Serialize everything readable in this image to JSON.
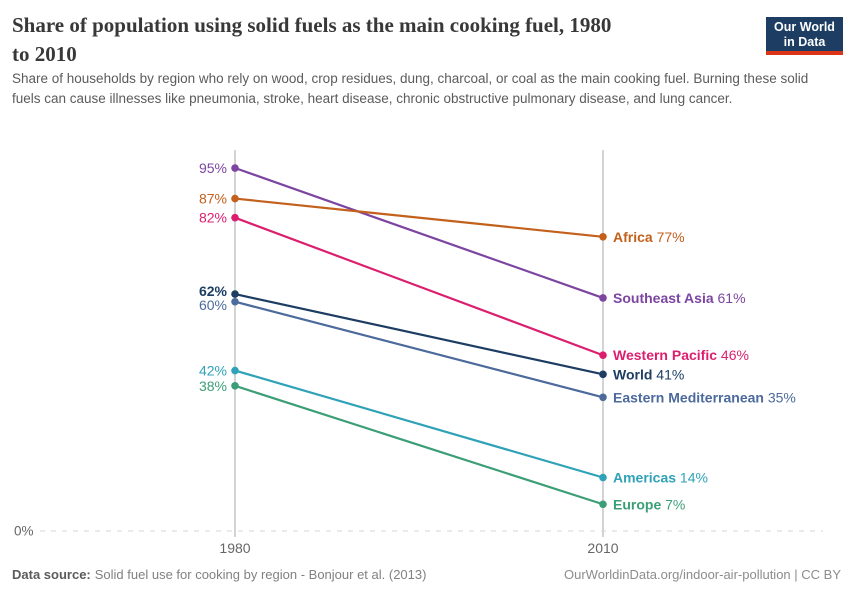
{
  "header": {
    "title_lines": [
      "Share of population using solid fuels as the main cooking fuel, 1980",
      "to 2010"
    ],
    "subtitle": "Share of households by region who rely on wood, crop residues, dung, charcoal, or coal as the main cooking fuel. Burning these solid fuels can cause illnesses like pneumonia, stroke, heart disease, chronic obstructive pulmonary disease, and lung cancer.",
    "logo": {
      "line1": "Our World",
      "line2": "in Data",
      "bg_color": "#1D3D63",
      "accent_color": "#DC3418"
    }
  },
  "chart_data": {
    "type": "line",
    "variant": "slope",
    "x": [
      1980,
      2010
    ],
    "x_tick_labels": [
      "1980",
      "2010"
    ],
    "unit": "%",
    "y_axis": {
      "min": 0,
      "max": 100,
      "baseline_label": "0%"
    },
    "legend_position": "inline-right-labels",
    "grid": "baseline-dashed-only",
    "series": [
      {
        "name": "Southeast Asia",
        "values": [
          95,
          61
        ],
        "color": "#7C45A1",
        "bold": false
      },
      {
        "name": "Africa",
        "values": [
          87,
          77
        ],
        "color": "#C2601C",
        "bold": false
      },
      {
        "name": "Western Pacific",
        "values": [
          82,
          46
        ],
        "color": "#DB1F6E",
        "bold": false
      },
      {
        "name": "World",
        "values": [
          62,
          41
        ],
        "color": "#1D3D63",
        "bold": true
      },
      {
        "name": "Eastern Mediterranean",
        "values": [
          60,
          35
        ],
        "color": "#4C6A9C",
        "bold": false
      },
      {
        "name": "Americas",
        "values": [
          42,
          14
        ],
        "color": "#2FA2B8",
        "bold": false
      },
      {
        "name": "Europe",
        "values": [
          38,
          7
        ],
        "color": "#3C9E77",
        "bold": false
      }
    ],
    "style": {
      "axis_color": "#D3D3D3",
      "gridline_color": "#E4E4E4",
      "tick_label_color": "#666666"
    }
  },
  "footer": {
    "datasource_label": "Data source:",
    "datasource_text": "Solid fuel use for cooking by region - Bonjour et al. (2013)",
    "citation": "OurWorldinData.org/indoor-air-pollution | CC BY"
  }
}
